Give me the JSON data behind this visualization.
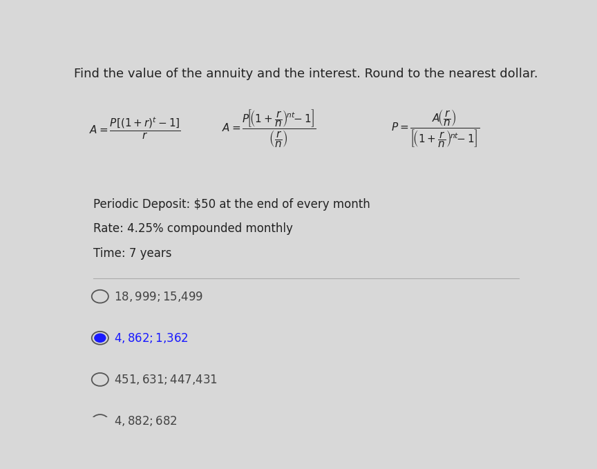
{
  "title": "Find the value of the annuity and the interest. Round to the nearest dollar.",
  "title_fontsize": 13,
  "bg_color": "#d8d8d8",
  "info_lines": [
    "Periodic Deposit: $50 at the end of every month",
    "Rate: 4.25% compounded monthly",
    "Time: 7 years"
  ],
  "options": [
    "$18,999; $15,499",
    "$4,862; $1,362",
    "$451,631; $447,431",
    "$4,882; $682"
  ],
  "selected_index": 1,
  "text_color": "#222222",
  "option_color": "#444444",
  "selected_color": "#1a1aff",
  "radio_fill_selected": "#1a1aff",
  "radio_border": "#555555",
  "divider_color": "#aaaaaa"
}
